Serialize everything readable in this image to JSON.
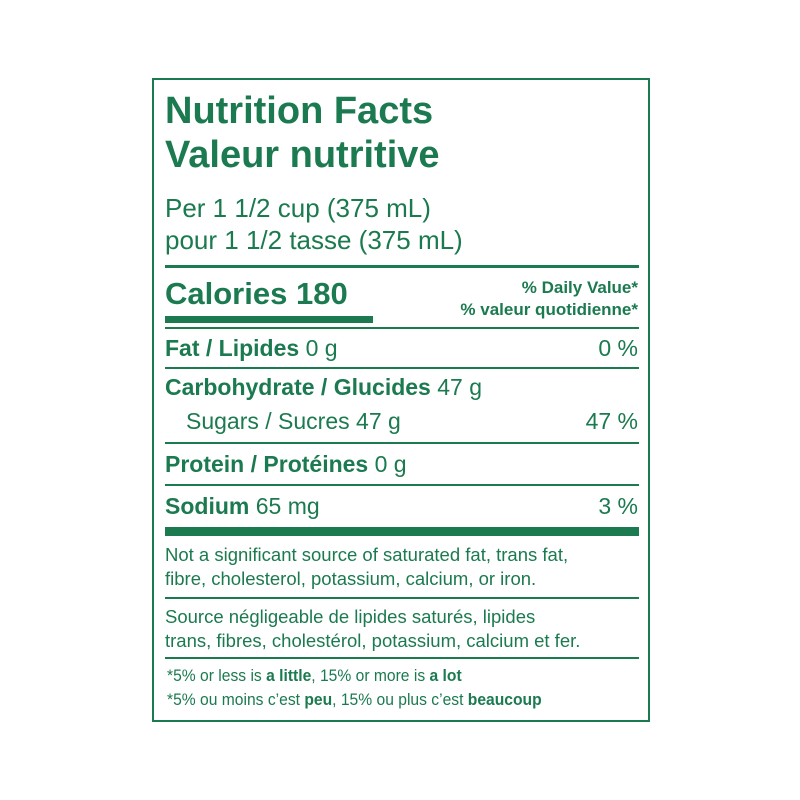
{
  "title_en": "Nutrition Facts",
  "title_fr": "Valeur nutritive",
  "serving_en": "Per 1 1/2 cup (375 mL)",
  "serving_fr": "pour 1 1/2 tasse (375 mL)",
  "calories": {
    "label": "Calories",
    "value": "180"
  },
  "dv_header_en": "% Daily Value*",
  "dv_header_fr": "% valeur quotidienne*",
  "nutrients": [
    {
      "label": "Fat / Lipides",
      "amount": "0 g",
      "dv": "0 %"
    },
    {
      "label": "Carbohydrate / Glucides",
      "amount": "47 g",
      "dv": ""
    },
    {
      "label": "Sugars / Sucres",
      "amount": "47 g",
      "dv": "47 %"
    },
    {
      "label": "Protein / Protéines",
      "amount": "0 g",
      "dv": ""
    },
    {
      "label": "Sodium",
      "amount": "65 mg",
      "dv": "3 %"
    }
  ],
  "note_en": [
    "Not a significant source of saturated fat, trans fat,",
    "fibre, cholesterol, potassium, calcium, or iron."
  ],
  "note_fr": [
    "Source négligeable de lipides saturés, lipides",
    "trans, fibres, cholestérol, potassium, calcium et fer."
  ],
  "footnote_en": {
    "a": "*5% or less is ",
    "b": "a little",
    "c": ", 15% or more is ",
    "d": "a lot"
  },
  "footnote_fr": {
    "a": "*5% ou moins c’est ",
    "b": "peu",
    "c": ", 15% ou plus c’est ",
    "d": "beaucoup"
  },
  "colors": {
    "text": "#1b7a4f",
    "background": "#ffffff"
  }
}
